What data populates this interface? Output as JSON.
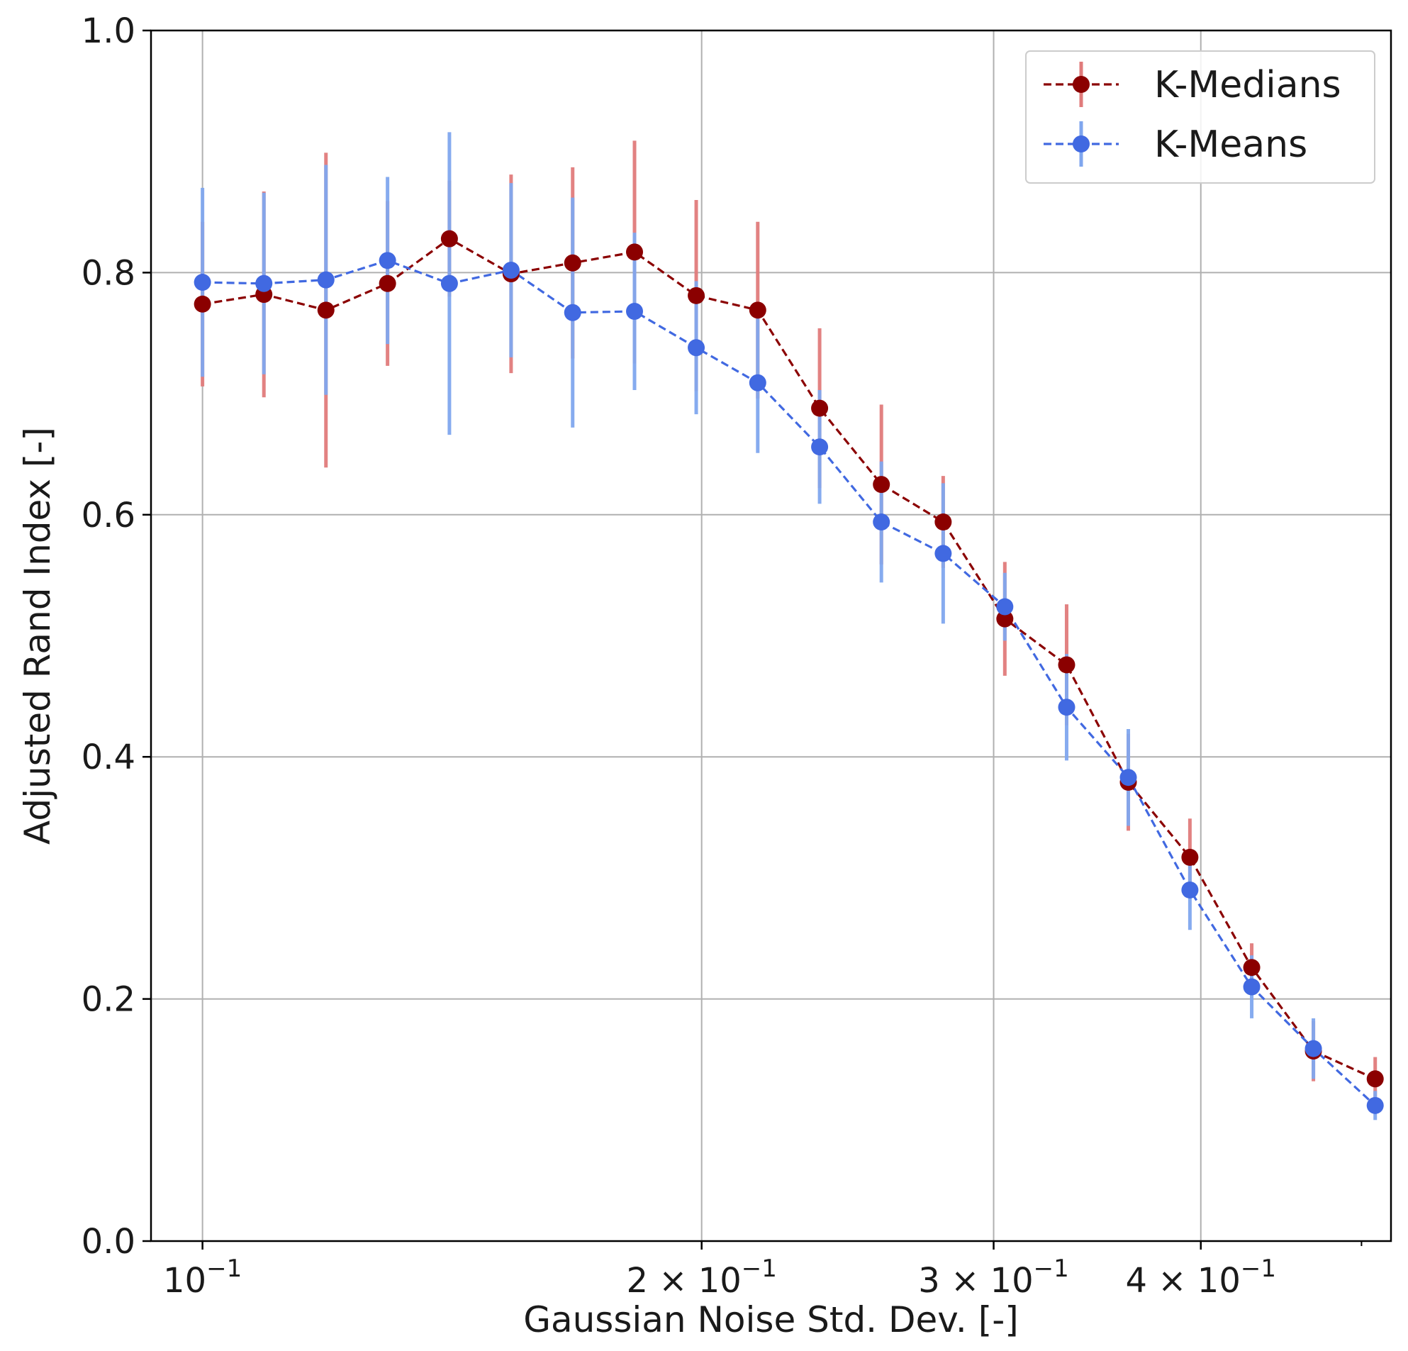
{
  "chart_data": {
    "type": "line",
    "subtype": "errorbar",
    "title": "",
    "xlabel": "Gaussian Noise Std. Dev. [-]",
    "ylabel": "Adjusted Rand Index [-]",
    "xscale": "log",
    "xlim": [
      0.0931,
      0.5209
    ],
    "ylim": [
      0.0,
      1.0
    ],
    "grid": true,
    "legend_position": "top-right",
    "x": [
      0.1,
      0.1089,
      0.1187,
      0.1293,
      0.1409,
      0.1535,
      0.1672,
      0.1822,
      0.1985,
      0.2162,
      0.2356,
      0.2567,
      0.2797,
      0.3047,
      0.332,
      0.3617,
      0.394,
      0.4293,
      0.4677,
      0.5096
    ],
    "series": [
      {
        "name": "K-Medians",
        "color": "#8B0000",
        "errorbar_color": "#E07B7B",
        "values": [
          0.774,
          0.782,
          0.769,
          0.791,
          0.828,
          0.799,
          0.808,
          0.817,
          0.781,
          0.769,
          0.688,
          0.625,
          0.594,
          0.514,
          0.476,
          0.379,
          0.317,
          0.226,
          0.157,
          0.134
        ],
        "errors": [
          0.068,
          0.085,
          0.13,
          0.068,
          0.048,
          0.082,
          0.079,
          0.092,
          0.079,
          0.073,
          0.066,
          0.066,
          0.038,
          0.047,
          0.05,
          0.04,
          0.032,
          0.02,
          0.025,
          0.018
        ]
      },
      {
        "name": "K-Means",
        "color": "#4169E1",
        "errorbar_color": "#7FA6EE",
        "values": [
          0.792,
          0.791,
          0.794,
          0.81,
          0.791,
          0.802,
          0.767,
          0.768,
          0.738,
          0.709,
          0.656,
          0.594,
          0.568,
          0.524,
          0.441,
          0.383,
          0.29,
          0.21,
          0.159,
          0.112
        ],
        "errors": [
          0.078,
          0.075,
          0.095,
          0.069,
          0.125,
          0.072,
          0.095,
          0.065,
          0.055,
          0.058,
          0.047,
          0.05,
          0.058,
          0.028,
          0.044,
          0.04,
          0.033,
          0.026,
          0.025,
          0.012
        ]
      }
    ],
    "x_ticks": [
      {
        "value": 0.1,
        "base": "10",
        "exp": "−1",
        "coef": ""
      },
      {
        "value": 0.2,
        "base": "10",
        "exp": "−1",
        "coef": "2 × "
      },
      {
        "value": 0.3,
        "base": "10",
        "exp": "−1",
        "coef": "3 × "
      },
      {
        "value": 0.4,
        "base": "10",
        "exp": "−1",
        "coef": "4 × "
      }
    ],
    "x_minor_ticks": [
      0.5
    ],
    "y_ticks": [
      {
        "value": 0.0,
        "label": "0.0"
      },
      {
        "value": 0.2,
        "label": "0.2"
      },
      {
        "value": 0.4,
        "label": "0.4"
      },
      {
        "value": 0.6,
        "label": "0.6"
      },
      {
        "value": 0.8,
        "label": "0.8"
      },
      {
        "value": 1.0,
        "label": "1.0"
      }
    ]
  }
}
